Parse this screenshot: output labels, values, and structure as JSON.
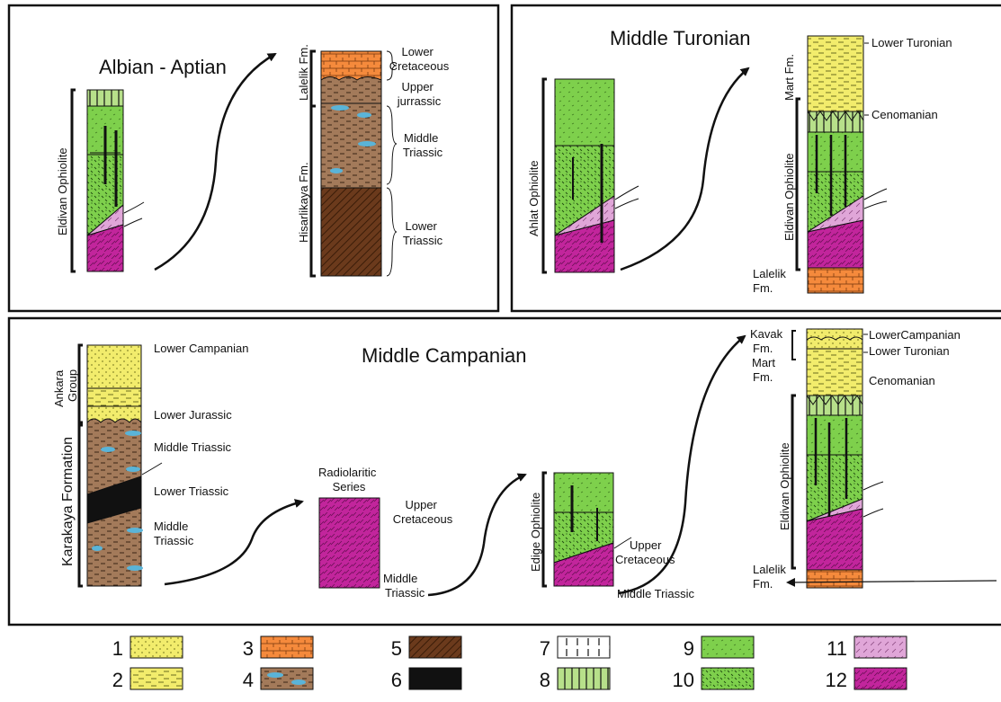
{
  "panels": {
    "albian": {
      "title": "Albian - Aptian",
      "col1_side": "Eldivan Ophiolite",
      "col2_side_top": "Lalelik Fm.",
      "col2_side_bottom": "Hisarlikaya Fm.",
      "ages": [
        [
          "Lower",
          "Cretaceous"
        ],
        [
          "Upper",
          "jurrassic"
        ],
        [
          "Middle",
          "Triassic"
        ],
        [
          "Lower",
          "Triassic"
        ]
      ]
    },
    "turonian": {
      "title": "Middle Turonian",
      "col1_side": "Ahlat Ophiolite",
      "col2_side_top": "Mart Fm.",
      "col2_side_mid": "Eldivan Ophiolite",
      "col2_side_bottom": [
        "Lalelik",
        "Fm."
      ],
      "ages": [
        "Lower Turonian",
        "Cenomanian"
      ]
    },
    "campanian": {
      "title": "Middle Campanian",
      "col1_side_top": [
        "Ankara",
        "Group"
      ],
      "col1_side_bottom": "Karakaya Formation",
      "col1_ages": [
        "Lower Campanian",
        "Lower Jurassic",
        "Middle Triassic",
        "Lower Triassic",
        [
          "Middle",
          "Triassic"
        ]
      ],
      "col2_top": [
        "Radiolaritic",
        "Series"
      ],
      "col2_ages": [
        [
          "Upper",
          "Cretaceous"
        ],
        [
          "Middle",
          "Triassic"
        ]
      ],
      "col3_side": "Edige Ophiolite",
      "col3_ages": [
        [
          "Upper",
          "Cretaceous"
        ],
        "Middle Triassic"
      ],
      "col4_side_top": [
        "Kavak",
        "Fm.",
        "Mart",
        "Fm."
      ],
      "col4_side_mid": "Eldivan Ophiolite",
      "col4_side_bottom": [
        "Lalelik",
        "Fm."
      ],
      "col4_ages": [
        "LowerCampanian",
        "Lower Turonian",
        "Cenomanian"
      ]
    }
  },
  "legend": [
    {
      "num": "1",
      "pattern": "p1"
    },
    {
      "num": "2",
      "pattern": "p2"
    },
    {
      "num": "3",
      "pattern": "p3"
    },
    {
      "num": "4",
      "pattern": "p4"
    },
    {
      "num": "5",
      "pattern": "p5"
    },
    {
      "num": "6",
      "pattern": "p6"
    },
    {
      "num": "7",
      "pattern": "p7"
    },
    {
      "num": "8",
      "pattern": "p8"
    },
    {
      "num": "9",
      "pattern": "p9"
    },
    {
      "num": "10",
      "pattern": "p10"
    },
    {
      "num": "11",
      "pattern": "p11"
    },
    {
      "num": "12",
      "pattern": "p12"
    }
  ],
  "colors": {
    "yellow": "#f2ec6c",
    "orange": "#f58a3c",
    "brown": "#a37a5a",
    "darkbrown": "#6b3a1c",
    "black": "#111111",
    "lightgreen": "#b7e08a",
    "green": "#7ed04c",
    "pink": "#e0a6d8",
    "magenta": "#c2259c",
    "blue": "#5ab4d8"
  }
}
